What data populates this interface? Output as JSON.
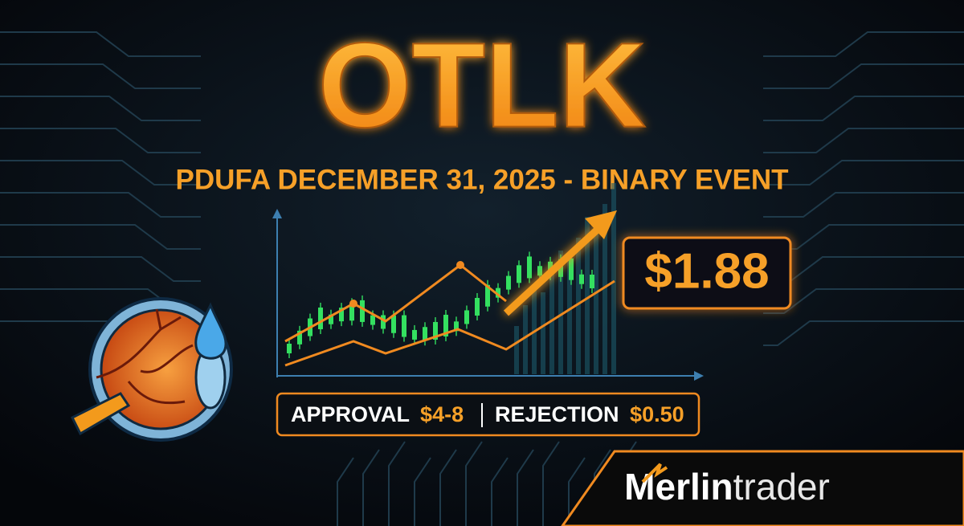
{
  "header": {
    "ticker": "OTLK",
    "subtitle": "PDUFA DECEMBER 31, 2025 - BINARY EVENT"
  },
  "price": "$1.88",
  "scenarios": {
    "approval_label": "APPROVAL",
    "approval_value": "$4-8",
    "rejection_label": "REJECTION",
    "rejection_value": "$0.50"
  },
  "brand": {
    "first": "Merlin",
    "second": "trader"
  }
}
